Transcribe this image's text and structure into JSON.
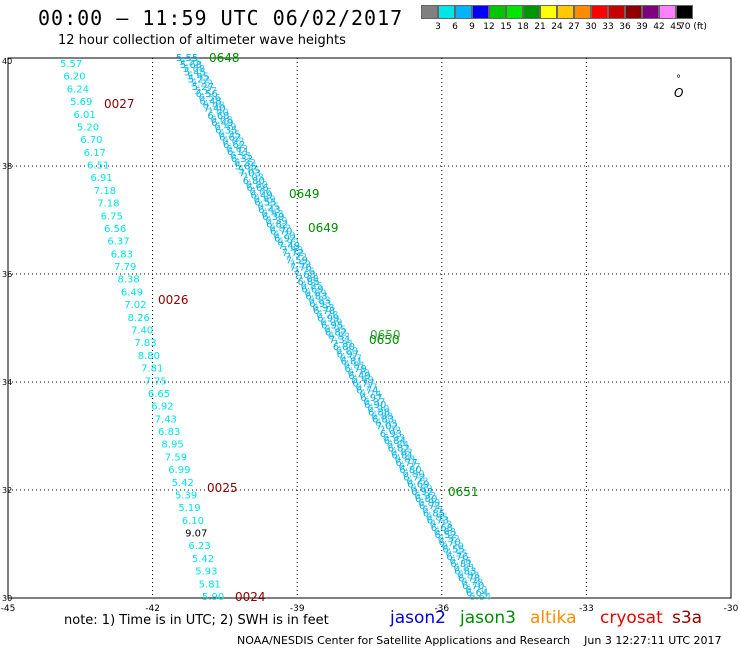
{
  "header": {
    "title": "00:00 — 11:59 UTC 06/02/2017",
    "subtitle": "12 hour collection of altimeter wave heights"
  },
  "colorbar": {
    "colors": [
      "#808080",
      "#00e5e5",
      "#00b4ff",
      "#0000ff",
      "#00c800",
      "#00e600",
      "#009600",
      "#ffff00",
      "#ffc800",
      "#ff8c00",
      "#ff0000",
      "#c80000",
      "#8c0000",
      "#7f007f",
      "#ff80ff",
      "#000000"
    ],
    "labels": [
      "3",
      "6",
      "9",
      "12",
      "15",
      "18",
      "21",
      "24",
      "27",
      "30",
      "33",
      "36",
      "39",
      "42",
      "45",
      "70 (ft)"
    ]
  },
  "map": {
    "lon_range": [
      -45,
      -30
    ],
    "lat_range": [
      30,
      40
    ],
    "lon_ticks": [
      "-45",
      "-42",
      "-39",
      "-36",
      "-33",
      "-30"
    ],
    "lat_ticks": [
      "40",
      "38",
      "36",
      "34",
      "32",
      "30"
    ],
    "grid": "dotted",
    "island_marker": "°"
  },
  "tracks": {
    "cryosat_left": {
      "color": "#00e5e5",
      "values": [
        "5.57",
        "6.20",
        "6.24",
        "5.69",
        "6.01",
        "5.20",
        "6.70",
        "6.17",
        "6.51",
        "6.91",
        "7.18",
        "7.18",
        "6.75",
        "6.56",
        "6.37",
        "6.83",
        "7.79",
        "8.38",
        "6.49",
        "7.02",
        "8.26",
        "7.40",
        "7.83",
        "8.80",
        "7.81",
        "7.75",
        "6.65",
        "6.92",
        "7.43",
        "6.83",
        "8.95",
        "7.59",
        "6.99",
        "5.42",
        "5.39",
        "5.19",
        "6.10",
        "9.07",
        "6.23",
        "5.42",
        "5.93",
        "5.81",
        "5.90"
      ],
      "time_labels": [
        {
          "text": "0027",
          "color": "#8c0000"
        },
        {
          "text": "0026",
          "color": "#8c0000"
        },
        {
          "text": "0025",
          "color": "#8c0000"
        },
        {
          "text": "0024",
          "color": "#8c0000"
        }
      ]
    },
    "jason3_right": {
      "color": "#00b4e6",
      "values": [
        "5.55",
        "5.68",
        "5.45",
        "5.22",
        "5.27",
        "6.56",
        "6.48",
        "7.40",
        "6.68",
        "6.49",
        "6.35",
        "6.62",
        "6.62",
        "6.11",
        "6.32",
        "5.85",
        "7.03",
        "6.80",
        "6.66",
        "6.49",
        "6.55",
        "6.43",
        "6.39",
        "6.82",
        "6.70",
        "6.92",
        "7.49",
        "7.72",
        "7.59",
        "7.76",
        "7.68",
        "6.85",
        "6.69",
        "6.83",
        "6.93",
        "6.78",
        "6.99",
        "6.95",
        "6.82",
        "7.31",
        "6.80",
        "6.97",
        "6.81",
        "6.79",
        "6.49",
        "6.77",
        "6.74",
        "6.97",
        "6.90",
        "6.88",
        "6.83",
        "7.02",
        "6.93",
        "6.84",
        "6.82",
        "6.81",
        "6.77",
        "6.80",
        "6.72",
        "6.69",
        "6.92",
        "6.80",
        "6.71",
        "6.85",
        "6.73",
        "6.68",
        "6.52",
        "6.70",
        "6.55",
        "6.76",
        "6.81",
        "6.83",
        "6.78",
        "6.70",
        "6.64"
      ],
      "time_labels": [
        {
          "text": "0648",
          "color": "#008c00"
        },
        {
          "text": "0649",
          "color": "#008c00"
        },
        {
          "text": "0649",
          "color": "#008c00"
        },
        {
          "text": "0650",
          "color": "#008c00"
        },
        {
          "text": "0651",
          "color": "#008c00"
        }
      ]
    }
  },
  "footer": {
    "note": "note: 1) Time is in UTC; 2) SWH is in feet",
    "legend": [
      {
        "name": "jason2",
        "color": "#0000dc"
      },
      {
        "name": "jason3",
        "color": "#008c00"
      },
      {
        "name": "altika",
        "color": "#ff8c00"
      },
      {
        "name": "cryosat",
        "color": "#e60000"
      },
      {
        "name": "s3a",
        "color": "#8c0000"
      }
    ],
    "credit": "NOAA/NESDIS Center for Satellite Applications and Research",
    "timestamp": "Jun  3 12:27:11 UTC 2017"
  }
}
